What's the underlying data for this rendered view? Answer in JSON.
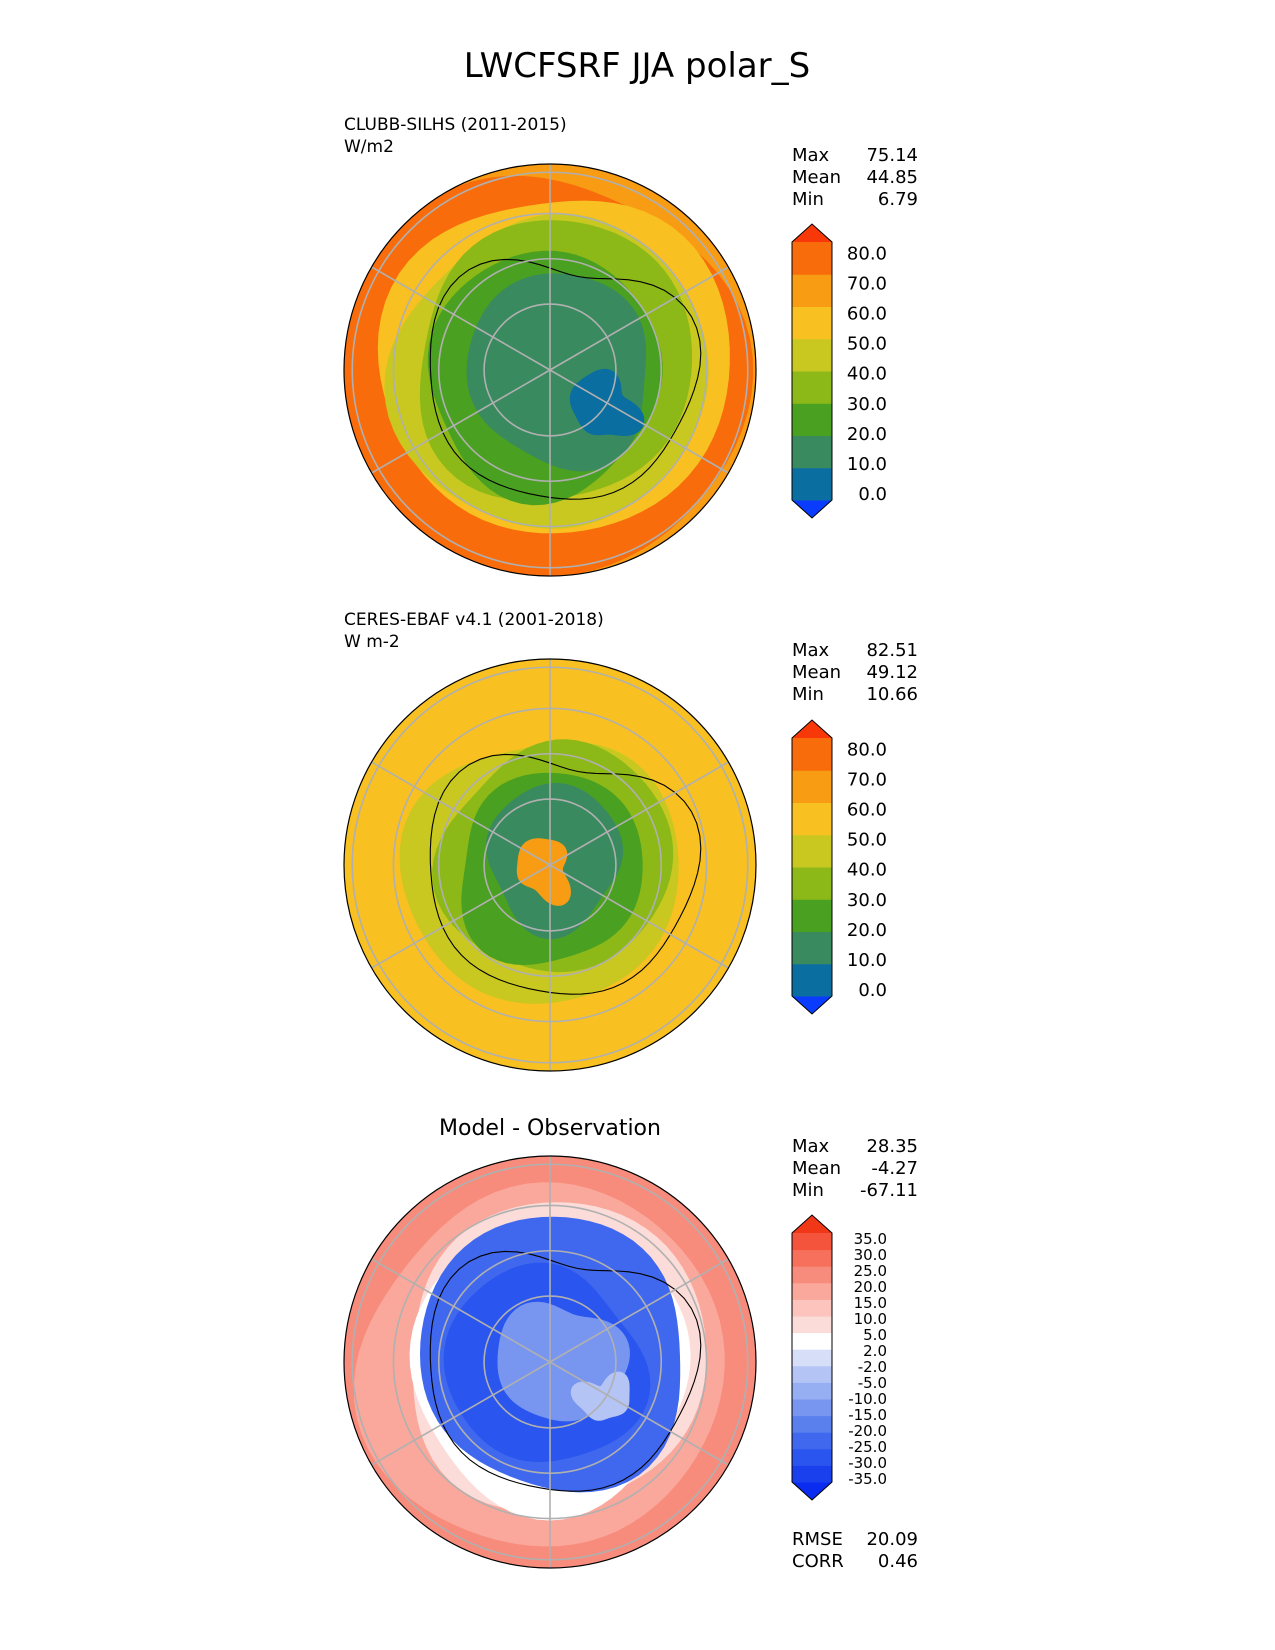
{
  "title": "LWCFSRF JJA polar_S",
  "chart_data": [
    {
      "type": "heatmap",
      "projection": "south-polar-stereographic",
      "panel_label": "CLUBB-SILHS (2011-2015)",
      "units": "W/m2",
      "stats": [
        {
          "label": "Max",
          "value": "75.14"
        },
        {
          "label": "Mean",
          "value": "44.85"
        },
        {
          "label": "Min",
          "value": "6.79"
        }
      ],
      "colorbar": {
        "ticks": [
          "80.0",
          "70.0",
          "60.0",
          "50.0",
          "40.0",
          "30.0",
          "20.0",
          "10.0",
          "0.0"
        ],
        "colors": [
          "#0a3cff",
          "#0a6ea0",
          "#3a8a60",
          "#4aa020",
          "#8cb818",
          "#c8c820",
          "#f8c020",
          "#f89c14",
          "#f86c0c",
          "#f83808"
        ],
        "extend": "both"
      },
      "field_levels": [
        {
          "level": 60,
          "color": "#f89c14"
        },
        {
          "level": 65,
          "color": "#f86c0c"
        },
        {
          "level": 55,
          "color": "#f8c020"
        },
        {
          "level": 45,
          "color": "#c8c820"
        },
        {
          "level": 35,
          "color": "#8cb818"
        },
        {
          "level": 25,
          "color": "#4aa020"
        },
        {
          "level": 15,
          "color": "#3a8a60"
        },
        {
          "level": 8,
          "color": "#0a6ea0"
        }
      ]
    },
    {
      "type": "heatmap",
      "projection": "south-polar-stereographic",
      "panel_label": "CERES-EBAF v4.1 (2001-2018)",
      "units": "W m-2",
      "stats": [
        {
          "label": "Max",
          "value": "82.51"
        },
        {
          "label": "Mean",
          "value": "49.12"
        },
        {
          "label": "Min",
          "value": "10.66"
        }
      ],
      "colorbar": {
        "ticks": [
          "80.0",
          "70.0",
          "60.0",
          "50.0",
          "40.0",
          "30.0",
          "20.0",
          "10.0",
          "0.0"
        ],
        "colors": [
          "#0a3cff",
          "#0a6ea0",
          "#3a8a60",
          "#4aa020",
          "#8cb818",
          "#c8c820",
          "#f8c020",
          "#f89c14",
          "#f86c0c",
          "#f83808"
        ],
        "extend": "both"
      },
      "field_levels": [
        {
          "level": 55,
          "color": "#f8c020"
        },
        {
          "level": 45,
          "color": "#c8c820"
        },
        {
          "level": 35,
          "color": "#8cb818"
        },
        {
          "level": 28,
          "color": "#4aa020"
        },
        {
          "level": 18,
          "color": "#3a8a60"
        },
        {
          "level": 62,
          "color": "#f89c14"
        }
      ]
    },
    {
      "type": "heatmap",
      "projection": "south-polar-stereographic",
      "panel_title": "Model - Observation",
      "stats": [
        {
          "label": "Max",
          "value": "28.35"
        },
        {
          "label": "Mean",
          "value": "-4.27"
        },
        {
          "label": "Min",
          "value": "-67.11"
        }
      ],
      "colorbar": {
        "ticks": [
          "35.0",
          "30.0",
          "25.0",
          "20.0",
          "15.0",
          "10.0",
          "5.0",
          "2.0",
          "-2.0",
          "-5.0",
          "-10.0",
          "-15.0",
          "-20.0",
          "-25.0",
          "-30.0",
          "-35.0"
        ],
        "colors": [
          "#0a2cf0",
          "#1a40ee",
          "#2a55ee",
          "#4068ee",
          "#5a80ee",
          "#7896f0",
          "#96aef2",
          "#b4c4f4",
          "#d6def8",
          "#ffffff",
          "#fcdcd8",
          "#fcc4bc",
          "#faa89c",
          "#f88c7c",
          "#f6705c",
          "#f4543c",
          "#f03818"
        ],
        "extend": "both"
      },
      "field_levels": [
        {
          "level": 18,
          "color": "#f88c7c"
        },
        {
          "level": 10,
          "color": "#faa89c"
        },
        {
          "level": 4,
          "color": "#fcdcd8"
        },
        {
          "level": 0,
          "color": "#ffffff"
        },
        {
          "level": -22,
          "color": "#4068ee"
        },
        {
          "level": -30,
          "color": "#2a55ee"
        },
        {
          "level": -12,
          "color": "#7896f0"
        },
        {
          "level": -6,
          "color": "#b4c4f4"
        }
      ],
      "metrics": [
        {
          "label": "RMSE",
          "value": "20.09"
        },
        {
          "label": "CORR",
          "value": "0.46"
        }
      ]
    }
  ]
}
